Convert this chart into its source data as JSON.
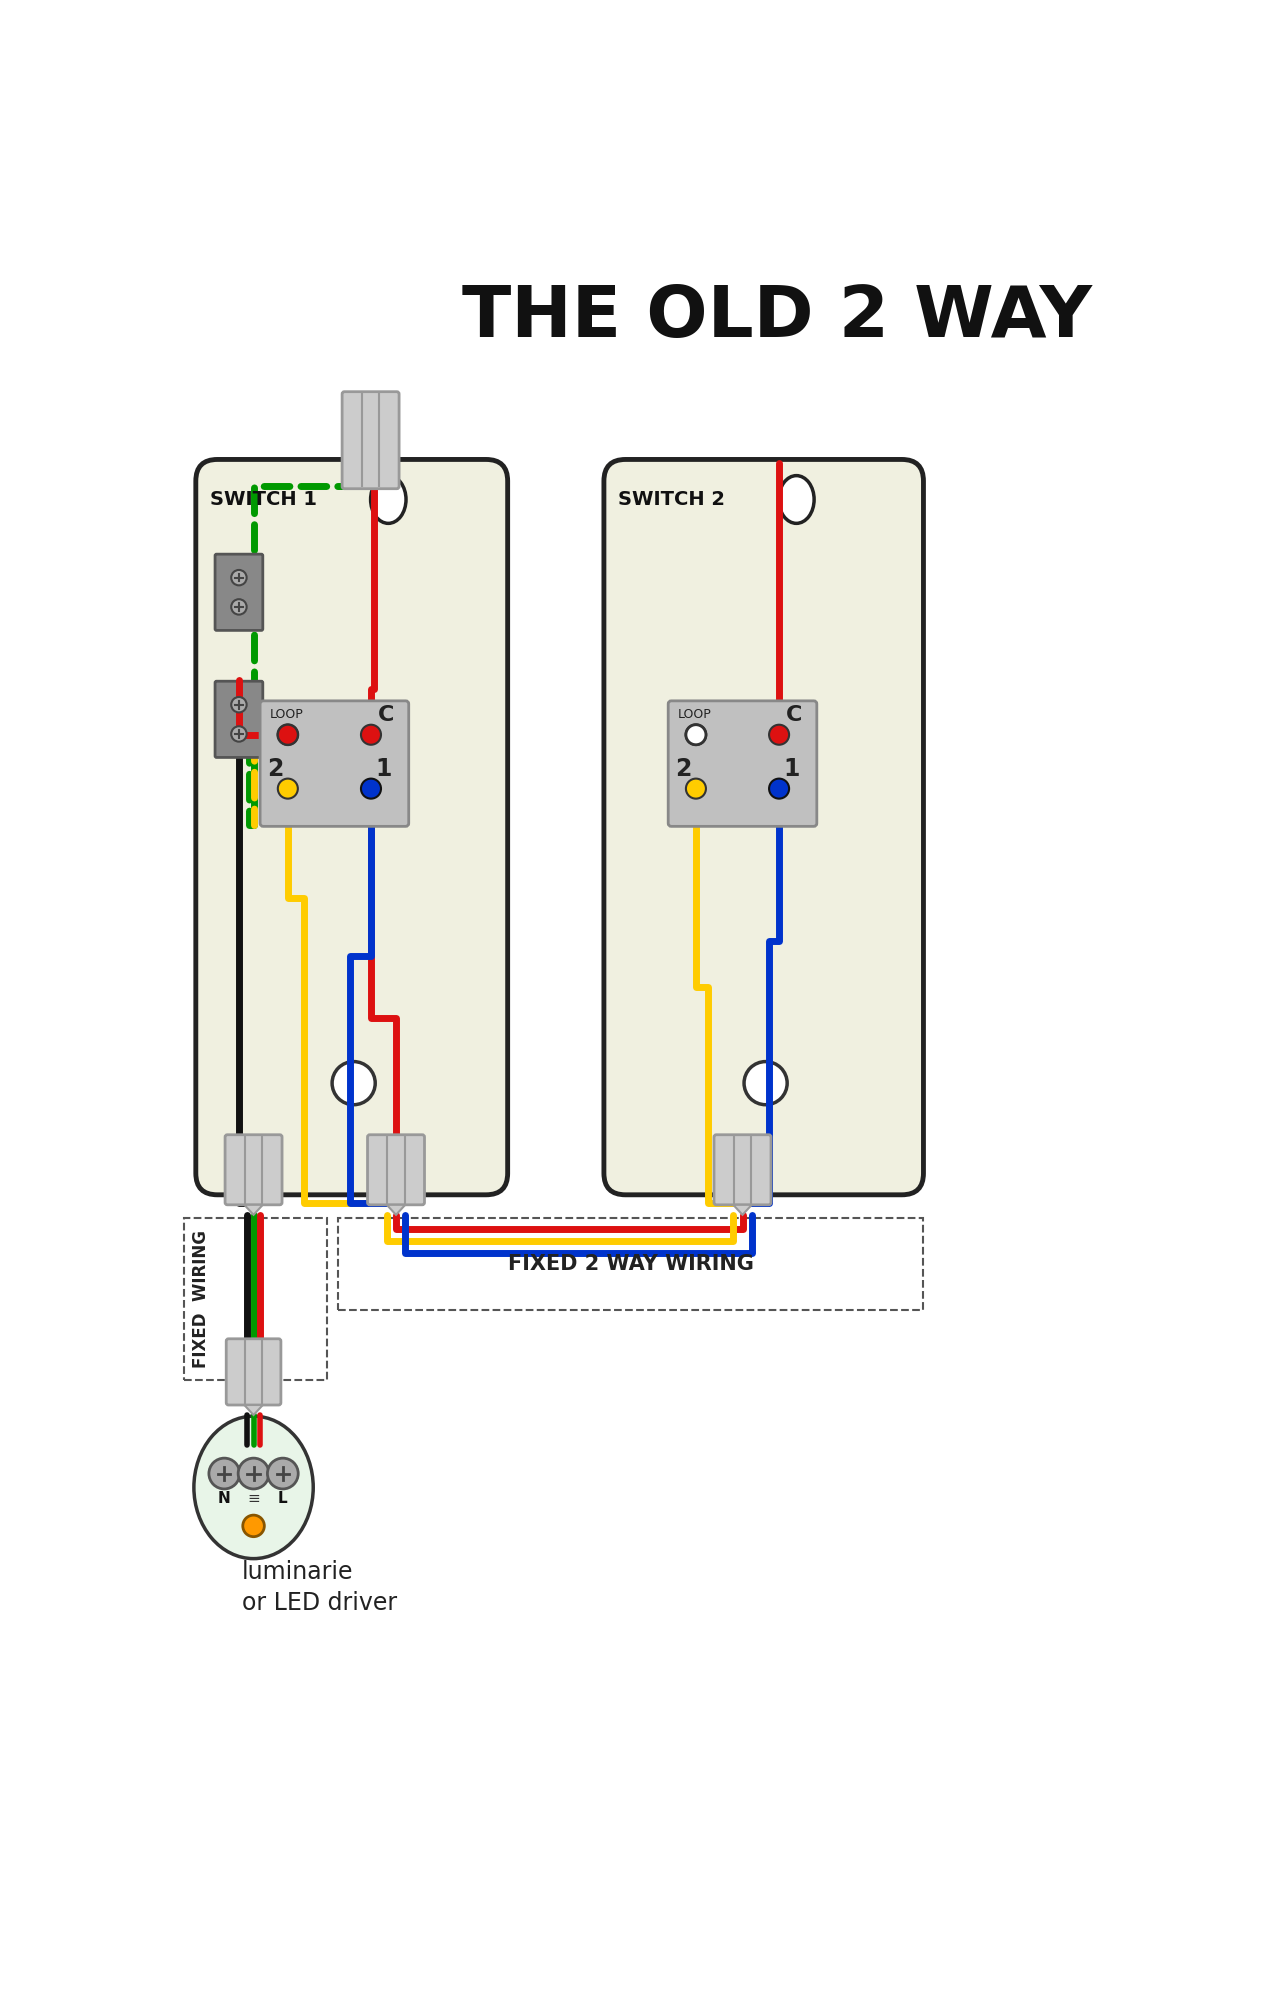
{
  "title": "THE OLD 2 WAY",
  "title_fontsize": 52,
  "bg_color": "#ffffff",
  "switch_bg": "#f0f0e0",
  "switch_border": "#222222",
  "wire_red": "#dd1111",
  "wire_green": "#009900",
  "wire_black": "#111111",
  "wire_yellow": "#ffcc00",
  "wire_blue": "#0033cc",
  "terminal_bg": "#c0c0c0",
  "connector_color": "#cccccc",
  "fixed_wiring_label": "FIXED  WIRING",
  "fixed_2way_label": "FIXED 2 WAY WIRING",
  "luminarie_label": "luminarie\nor LED driver",
  "switch1_label": "SWITCH 1",
  "switch2_label": "SWITCH 2"
}
